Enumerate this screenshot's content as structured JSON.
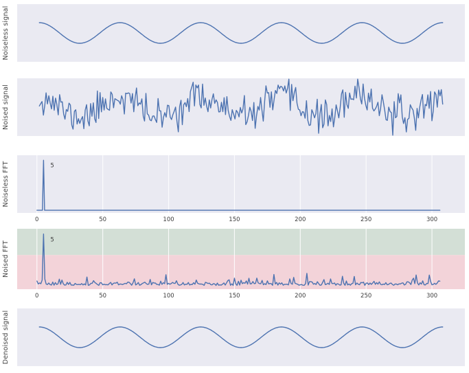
{
  "figure": {
    "kind": "signal-denoising-figure",
    "background": "#ffffff"
  },
  "palette": {
    "axes_bg": "#eaeaf2",
    "line": "#4c72b0",
    "grid": "#ffffff",
    "text": "#3c3c3c",
    "band_green": "#d3dfd6",
    "band_red": "#f3d3d9"
  },
  "chart_data": [
    {
      "id": "noiseless-signal",
      "type": "line",
      "ylabel": "Noiseless signal",
      "xlim": [
        -0.055,
        1.055
      ],
      "ylim": [
        -2.8,
        2.8
      ],
      "xticks": [],
      "grid": false,
      "signal": {
        "kind": "cosine",
        "frequency_hz": 5,
        "amplitude": 1,
        "phase": "starts at peak (cosine)",
        "duration_s": 1,
        "n_samples": 500
      }
    },
    {
      "id": "noised-signal",
      "type": "line",
      "ylabel": "Noised signal",
      "xlim": [
        -0.055,
        1.055
      ],
      "ylim": [
        -2.8,
        2.8
      ],
      "xticks": [],
      "grid": false,
      "signal": {
        "kind": "cosine_noise",
        "frequency_hz": 5,
        "amplitude": 1,
        "noise_sigma": 0.78,
        "duration_s": 1,
        "n_samples": 300,
        "seed": 11
      }
    },
    {
      "id": "noiseless-fft",
      "type": "line",
      "ylabel": "Noiseless FFT",
      "xlim": [
        -15,
        325
      ],
      "ylim": [
        -0.05,
        1.1
      ],
      "xticks": [
        0,
        50,
        100,
        150,
        200,
        250,
        300
      ],
      "grid": true,
      "peak": {
        "frequency": 5,
        "label": "5",
        "height_norm": 1.0
      },
      "signal": {
        "kind": "fft_clean",
        "x_max": 306,
        "baseline": 0.004,
        "peak_frequency": 5
      }
    },
    {
      "id": "noised-fft",
      "type": "line",
      "ylabel": "Noised FFT",
      "xlim": [
        -15,
        325
      ],
      "ylim": [
        -0.05,
        1.1
      ],
      "xticks": [
        0,
        50,
        100,
        150,
        200,
        250,
        300
      ],
      "grid": true,
      "peak": {
        "frequency": 5,
        "label": "5",
        "height_norm": 1.0
      },
      "threshold_norm": 0.6,
      "bands": [
        {
          "name": "above-threshold-kept",
          "color_key": "band_green"
        },
        {
          "name": "below-threshold-filtered",
          "color_key": "band_red"
        }
      ],
      "signal": {
        "kind": "fft_noisy",
        "x_max": 306,
        "noise_floor_range": [
          0.02,
          0.25
        ],
        "peak_frequency": 5,
        "seed": 23
      }
    },
    {
      "id": "denoised-signal",
      "type": "line",
      "ylabel": "Denoised signal",
      "xlim": [
        -0.055,
        1.055
      ],
      "ylim": [
        -2.8,
        2.8
      ],
      "xticks": [],
      "grid": false,
      "signal": {
        "kind": "cosine",
        "frequency_hz": 5,
        "amplitude": 1,
        "phase": "starts at peak (cosine)",
        "duration_s": 1,
        "n_samples": 500
      }
    }
  ]
}
